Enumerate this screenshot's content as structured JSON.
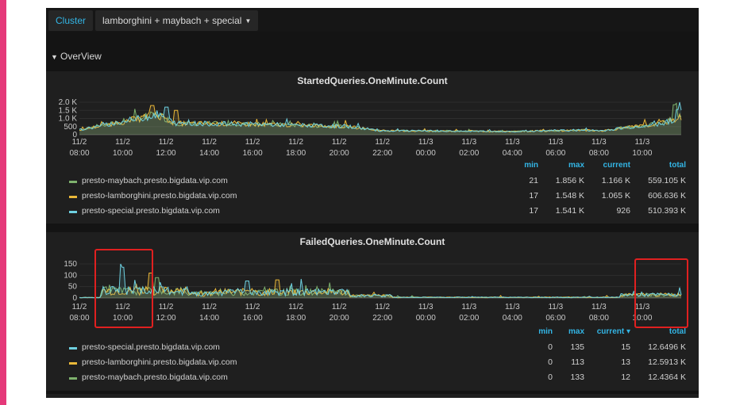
{
  "topbar": {
    "cluster_label": "Cluster",
    "selected_clusters": "lamborghini + maybach + special"
  },
  "row": {
    "title": "OverView"
  },
  "colors": {
    "green": "#7eb26d",
    "yellow": "#eab839",
    "cyan": "#6ed0e0",
    "accent": "#33b5e5",
    "highlight": "#e02020"
  },
  "x_tick_labels": [
    [
      "11/2",
      "08:00"
    ],
    [
      "11/2",
      "10:00"
    ],
    [
      "11/2",
      "12:00"
    ],
    [
      "11/2",
      "14:00"
    ],
    [
      "11/2",
      "16:00"
    ],
    [
      "11/2",
      "18:00"
    ],
    [
      "11/2",
      "20:00"
    ],
    [
      "11/2",
      "22:00"
    ],
    [
      "11/3",
      "00:00"
    ],
    [
      "11/3",
      "02:00"
    ],
    [
      "11/3",
      "04:00"
    ],
    [
      "11/3",
      "06:00"
    ],
    [
      "11/3",
      "08:00"
    ],
    [
      "11/3",
      "10:00"
    ]
  ],
  "panels": [
    {
      "title": "StartedQueries.OneMinute.Count",
      "y_tick_labels": [
        "2.0 K",
        "1.5 K",
        "1.0 K",
        "500",
        "0"
      ],
      "legend_headers": {
        "min": "min",
        "max": "max",
        "current": "current",
        "total": "total"
      },
      "series": [
        {
          "name": "presto-maybach.presto.bigdata.vip.com",
          "color": "#7eb26d",
          "min": "21",
          "max": "1.856 K",
          "current": "1.166 K",
          "total": "559.105 K"
        },
        {
          "name": "presto-lamborghini.presto.bigdata.vip.com",
          "color": "#eab839",
          "min": "17",
          "max": "1.548 K",
          "current": "1.065 K",
          "total": "606.636 K"
        },
        {
          "name": "presto-special.presto.bigdata.vip.com",
          "color": "#6ed0e0",
          "min": "17",
          "max": "1.541 K",
          "current": "926",
          "total": "510.393 K"
        }
      ]
    },
    {
      "title": "FailedQueries.OneMinute.Count",
      "y_tick_labels": [
        "150",
        "100",
        "50",
        "0"
      ],
      "legend_headers": {
        "min": "min",
        "max": "max",
        "current": "current ▾",
        "total": "total"
      },
      "series": [
        {
          "name": "presto-special.presto.bigdata.vip.com",
          "color": "#6ed0e0",
          "min": "0",
          "max": "135",
          "current": "15",
          "total": "12.6496 K"
        },
        {
          "name": "presto-lamborghini.presto.bigdata.vip.com",
          "color": "#eab839",
          "min": "0",
          "max": "113",
          "current": "13",
          "total": "12.5913 K"
        },
        {
          "name": "presto-maybach.presto.bigdata.vip.com",
          "color": "#7eb26d",
          "min": "0",
          "max": "133",
          "current": "12",
          "total": "12.4364 K"
        }
      ]
    }
  ]
}
